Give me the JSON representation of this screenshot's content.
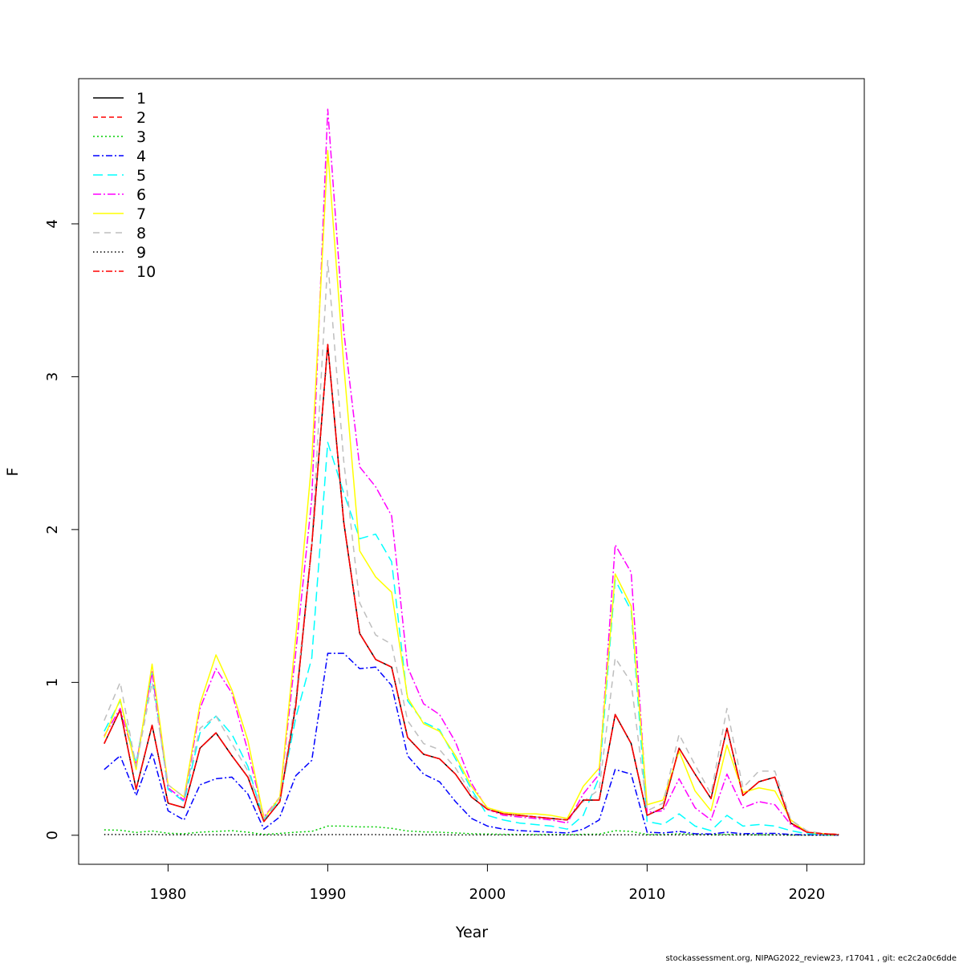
{
  "footer": "stockassessment.org, NIPAG2022_review23, r17041 , git: ec2c2a0c6dde",
  "chart_data": {
    "type": "line",
    "xlabel": "Year",
    "ylabel": "F",
    "xlim": [
      1974.4,
      2023.6
    ],
    "ylim": [
      -0.19,
      4.95
    ],
    "x_ticks": [
      1980,
      1990,
      2000,
      2010,
      2020
    ],
    "y_ticks": [
      0,
      1,
      2,
      3,
      4
    ],
    "grid": false,
    "legend_position": "top-left",
    "x": [
      1976,
      1977,
      1978,
      1979,
      1980,
      1981,
      1982,
      1983,
      1984,
      1985,
      1986,
      1987,
      1988,
      1989,
      1990,
      1991,
      1992,
      1993,
      1994,
      1995,
      1996,
      1997,
      1998,
      1999,
      2000,
      2001,
      2002,
      2003,
      2004,
      2005,
      2006,
      2007,
      2008,
      2009,
      2010,
      2011,
      2012,
      2013,
      2014,
      2015,
      2016,
      2017,
      2018,
      2019,
      2020,
      2021,
      2022
    ],
    "series": [
      {
        "name": "1",
        "color": "#000000",
        "dash": "",
        "values": [
          0.6,
          0.82,
          0.3,
          0.72,
          0.21,
          0.18,
          0.57,
          0.67,
          0.52,
          0.38,
          0.09,
          0.22,
          0.85,
          1.9,
          3.21,
          2.05,
          1.32,
          1.15,
          1.1,
          0.64,
          0.53,
          0.5,
          0.4,
          0.25,
          0.17,
          0.14,
          0.13,
          0.12,
          0.11,
          0.1,
          0.23,
          0.23,
          0.79,
          0.6,
          0.13,
          0.18,
          0.57,
          0.4,
          0.24,
          0.7,
          0.26,
          0.35,
          0.38,
          0.08,
          0.02,
          0.01,
          0.005
        ]
      },
      {
        "name": "2",
        "color": "#ff0000",
        "dash": "6,4",
        "values": [
          0.6,
          0.82,
          0.3,
          0.72,
          0.21,
          0.18,
          0.57,
          0.67,
          0.52,
          0.38,
          0.09,
          0.22,
          0.85,
          1.9,
          3.21,
          2.05,
          1.32,
          1.15,
          1.1,
          0.64,
          0.53,
          0.5,
          0.4,
          0.25,
          0.17,
          0.14,
          0.13,
          0.12,
          0.11,
          0.1,
          0.23,
          0.23,
          0.79,
          0.6,
          0.13,
          0.18,
          0.57,
          0.4,
          0.24,
          0.7,
          0.26,
          0.35,
          0.38,
          0.08,
          0.02,
          0.01,
          0.005
        ]
      },
      {
        "name": "3",
        "color": "#00cd00",
        "dash": "2,3",
        "values": [
          0.035,
          0.033,
          0.018,
          0.028,
          0.013,
          0.01,
          0.02,
          0.025,
          0.03,
          0.02,
          0.005,
          0.012,
          0.02,
          0.025,
          0.06,
          0.06,
          0.055,
          0.055,
          0.045,
          0.028,
          0.022,
          0.02,
          0.015,
          0.01,
          0.008,
          0.006,
          0.005,
          0.005,
          0.005,
          0.004,
          0.006,
          0.007,
          0.03,
          0.025,
          0.005,
          0.004,
          0.01,
          0.006,
          0.003,
          0.006,
          0.003,
          0.003,
          0.003,
          0.002,
          0.001,
          0.001,
          0.001
        ]
      },
      {
        "name": "4",
        "color": "#0000ff",
        "dash": "8,3,2,3",
        "values": [
          0.43,
          0.52,
          0.26,
          0.54,
          0.16,
          0.1,
          0.33,
          0.37,
          0.38,
          0.27,
          0.04,
          0.12,
          0.39,
          0.49,
          1.19,
          1.19,
          1.09,
          1.1,
          0.98,
          0.52,
          0.4,
          0.35,
          0.22,
          0.11,
          0.06,
          0.04,
          0.03,
          0.025,
          0.02,
          0.015,
          0.04,
          0.1,
          0.43,
          0.4,
          0.02,
          0.015,
          0.025,
          0.01,
          0.008,
          0.02,
          0.01,
          0.012,
          0.012,
          0.005,
          0.003,
          0.002,
          0.001
        ]
      },
      {
        "name": "5",
        "color": "#00ffff",
        "dash": "12,6",
        "values": [
          0.68,
          0.88,
          0.47,
          1.06,
          0.3,
          0.22,
          0.67,
          0.78,
          0.66,
          0.45,
          0.1,
          0.24,
          0.77,
          1.16,
          2.57,
          2.24,
          1.94,
          1.97,
          1.79,
          0.88,
          0.74,
          0.69,
          0.5,
          0.3,
          0.13,
          0.1,
          0.08,
          0.07,
          0.06,
          0.04,
          0.13,
          0.38,
          1.67,
          1.47,
          0.09,
          0.07,
          0.14,
          0.06,
          0.03,
          0.13,
          0.06,
          0.07,
          0.06,
          0.03,
          0.01,
          0.005,
          0.003
        ]
      },
      {
        "name": "6",
        "color": "#ff00ff",
        "dash": "10,3,2,3",
        "values": [
          0.65,
          0.83,
          0.46,
          1.07,
          0.31,
          0.23,
          0.83,
          1.09,
          0.93,
          0.55,
          0.12,
          0.25,
          1.2,
          2.2,
          4.75,
          3.3,
          2.41,
          2.28,
          2.09,
          1.1,
          0.86,
          0.79,
          0.61,
          0.34,
          0.17,
          0.13,
          0.12,
          0.11,
          0.1,
          0.08,
          0.27,
          0.4,
          1.9,
          1.72,
          0.15,
          0.16,
          0.37,
          0.18,
          0.1,
          0.4,
          0.18,
          0.22,
          0.2,
          0.07,
          0.02,
          0.01,
          0.005
        ]
      },
      {
        "name": "7",
        "color": "#ffff00",
        "dash": "",
        "values": [
          0.64,
          0.89,
          0.43,
          1.12,
          0.33,
          0.25,
          0.86,
          1.18,
          0.95,
          0.62,
          0.11,
          0.25,
          1.3,
          2.45,
          4.48,
          3.08,
          1.86,
          1.69,
          1.59,
          0.9,
          0.73,
          0.68,
          0.52,
          0.32,
          0.18,
          0.15,
          0.14,
          0.14,
          0.13,
          0.11,
          0.32,
          0.44,
          1.71,
          1.5,
          0.2,
          0.23,
          0.55,
          0.29,
          0.16,
          0.59,
          0.28,
          0.31,
          0.29,
          0.1,
          0.02,
          0.01,
          0.005
        ]
      },
      {
        "name": "8",
        "color": "#bebebe",
        "dash": "8,6",
        "values": [
          0.75,
          1.0,
          0.45,
          1.0,
          0.33,
          0.25,
          0.7,
          0.78,
          0.6,
          0.42,
          0.11,
          0.24,
          0.9,
          1.9,
          3.76,
          2.45,
          1.52,
          1.31,
          1.25,
          0.75,
          0.6,
          0.56,
          0.44,
          0.27,
          0.17,
          0.14,
          0.13,
          0.12,
          0.11,
          0.1,
          0.22,
          0.3,
          1.16,
          1.0,
          0.16,
          0.21,
          0.66,
          0.46,
          0.27,
          0.83,
          0.31,
          0.42,
          0.42,
          0.1,
          0.03,
          0.01,
          0.005
        ]
      },
      {
        "name": "9",
        "color": "#000000",
        "dash": "1.5,3",
        "values": [
          0.005,
          0.005,
          0.005,
          0.005,
          0.003,
          0.003,
          0.003,
          0.003,
          0.003,
          0.003,
          0.002,
          0.002,
          0.003,
          0.003,
          0.004,
          0.004,
          0.004,
          0.004,
          0.003,
          0.003,
          0.003,
          0.003,
          0.002,
          0.002,
          0.002,
          0.002,
          0.002,
          0.002,
          0.002,
          0.002,
          0.002,
          0.002,
          0.003,
          0.003,
          0.002,
          0.002,
          0.002,
          0.002,
          0.002,
          0.002,
          0.002,
          0.002,
          0.002,
          0.001,
          0.001,
          0.001,
          0.001
        ]
      },
      {
        "name": "10",
        "color": "#ff0000",
        "dash": "8,3,2,3",
        "values": [
          0.6,
          0.82,
          0.3,
          0.72,
          0.21,
          0.18,
          0.57,
          0.67,
          0.52,
          0.38,
          0.09,
          0.22,
          0.85,
          1.9,
          3.21,
          2.05,
          1.32,
          1.15,
          1.1,
          0.64,
          0.53,
          0.5,
          0.4,
          0.25,
          0.17,
          0.14,
          0.13,
          0.12,
          0.11,
          0.1,
          0.23,
          0.23,
          0.79,
          0.6,
          0.13,
          0.18,
          0.57,
          0.4,
          0.24,
          0.7,
          0.26,
          0.35,
          0.38,
          0.08,
          0.02,
          0.01,
          0.005
        ]
      }
    ]
  }
}
